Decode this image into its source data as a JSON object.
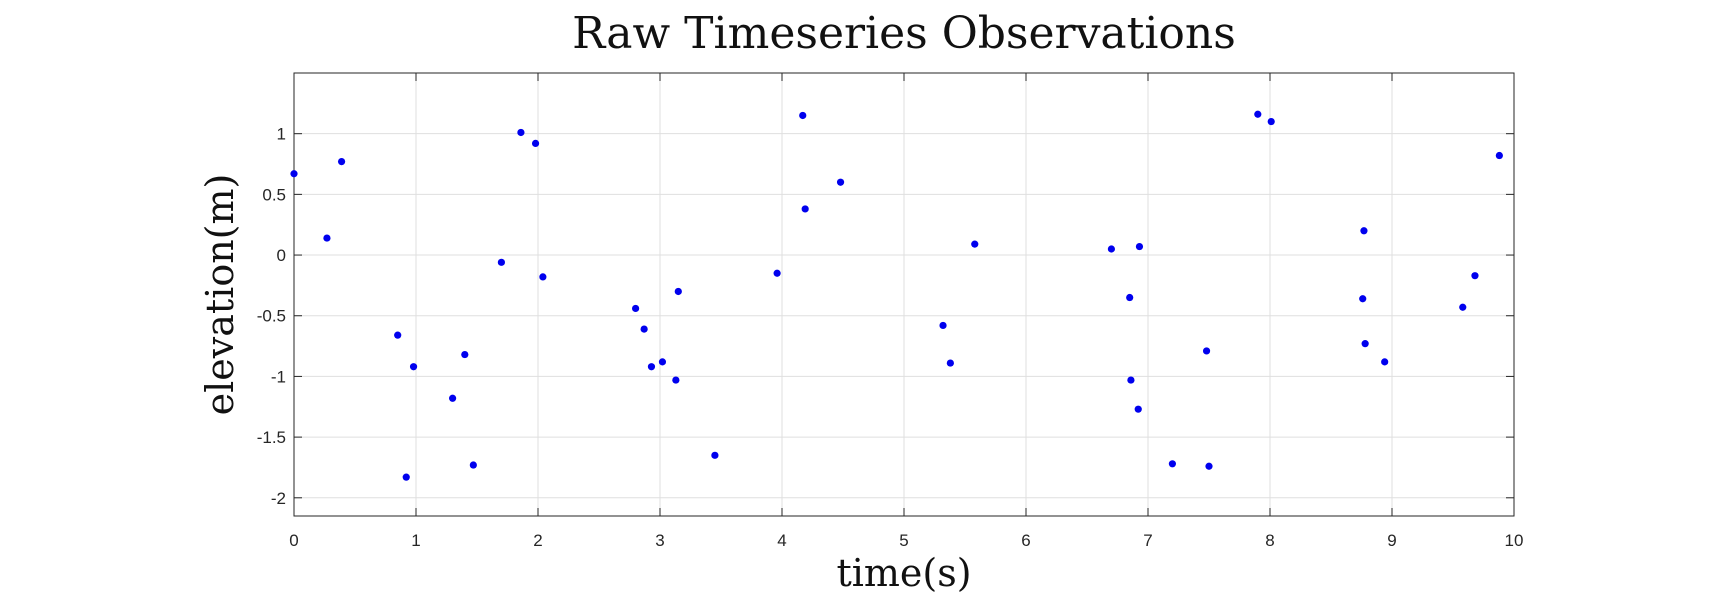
{
  "chart_data": {
    "type": "scatter",
    "title": "Raw Timeseries Observations",
    "xlabel": "time(s)",
    "ylabel": "elevation(m)",
    "xlim": [
      0,
      10
    ],
    "ylim": [
      -2.15,
      1.5
    ],
    "xticks": [
      0,
      1,
      2,
      3,
      4,
      5,
      6,
      7,
      8,
      9,
      10
    ],
    "yticks": [
      -2,
      -1.5,
      -1,
      -0.5,
      0,
      0.5,
      1
    ],
    "xtick_labels": [
      "0",
      "1",
      "2",
      "3",
      "4",
      "5",
      "6",
      "7",
      "8",
      "9",
      "10"
    ],
    "ytick_labels": [
      "-2",
      "-1.5",
      "-1",
      "-0.5",
      "0",
      "0.5",
      "1"
    ],
    "grid": true,
    "marker_color": "#0000ee",
    "series": [
      {
        "x": [
          0.0,
          0.27,
          0.39,
          0.85,
          0.92,
          0.98,
          1.3,
          1.4,
          1.47,
          1.7,
          1.86,
          1.98,
          2.04,
          2.8,
          2.87,
          2.93,
          3.02,
          3.13,
          3.15,
          3.45,
          3.96,
          4.17,
          4.19,
          4.48,
          5.32,
          5.38,
          5.58,
          6.7,
          6.85,
          6.86,
          6.92,
          6.93,
          7.2,
          7.48,
          7.5,
          7.9,
          8.01,
          8.76,
          8.77,
          8.78,
          8.94,
          9.58,
          9.68,
          9.88
        ],
        "y": [
          0.67,
          0.14,
          0.77,
          -0.66,
          -1.83,
          -0.92,
          -1.18,
          -0.82,
          -1.73,
          -0.06,
          1.01,
          0.92,
          -0.18,
          -0.44,
          -0.61,
          -0.92,
          -0.88,
          -1.03,
          -0.3,
          -1.65,
          -0.15,
          1.15,
          0.38,
          0.6,
          -0.58,
          -0.89,
          0.09,
          0.05,
          -0.35,
          -1.03,
          -1.27,
          0.07,
          -1.72,
          -0.79,
          -1.74,
          1.16,
          1.1,
          -0.36,
          0.2,
          -0.73,
          -0.88,
          -0.43,
          -0.17,
          0.82
        ]
      }
    ]
  }
}
